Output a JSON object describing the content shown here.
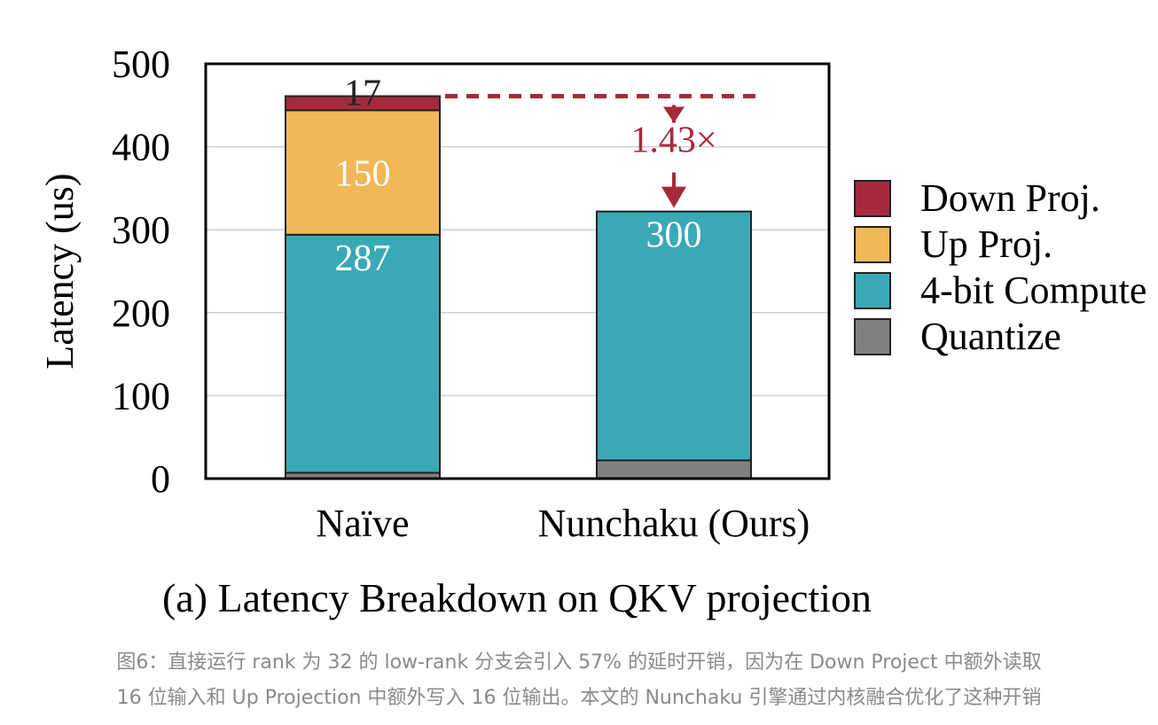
{
  "chart_data": {
    "type": "bar",
    "stacked": true,
    "ylabel": "Latency (us)",
    "ylim": [
      0,
      500
    ],
    "yticks": [
      0,
      100,
      200,
      300,
      400,
      500
    ],
    "categories": [
      "Naïve",
      "Nunchaku (Ours)"
    ],
    "series": [
      {
        "name": "Quantize",
        "color": "#808080",
        "values": [
          7,
          22
        ],
        "labels": [
          "7",
          "22"
        ]
      },
      {
        "name": "4-bit Compute",
        "color": "#3aa9b6",
        "values": [
          287,
          300
        ],
        "labels": [
          "287",
          "300"
        ]
      },
      {
        "name": "Up Proj.",
        "color": "#f2b756",
        "values": [
          150,
          0
        ],
        "labels": [
          "150",
          ""
        ]
      },
      {
        "name": "Down Proj.",
        "color": "#a52a3c",
        "values": [
          17,
          0
        ],
        "labels": [
          "17",
          ""
        ]
      }
    ],
    "legend_order": [
      "Down Proj.",
      "Up Proj.",
      "4-bit Compute",
      "Quantize"
    ],
    "legend_position": "right",
    "grid": true,
    "annotation": {
      "text": "1.43×",
      "color": "#a52a3c"
    },
    "subtitle": "(a) Latency Breakdown on QKV projection"
  },
  "caption": {
    "line1": "图6：直接运行 rank 为 32 的 low-rank 分支会引入 57% 的延时开销，因为在 Down Project 中额外读取",
    "line2": "16 位输入和 Up Projection 中额外写入 16 位输出。本文的 Nunchaku 引擎通过内核融合优化了这种开销"
  }
}
